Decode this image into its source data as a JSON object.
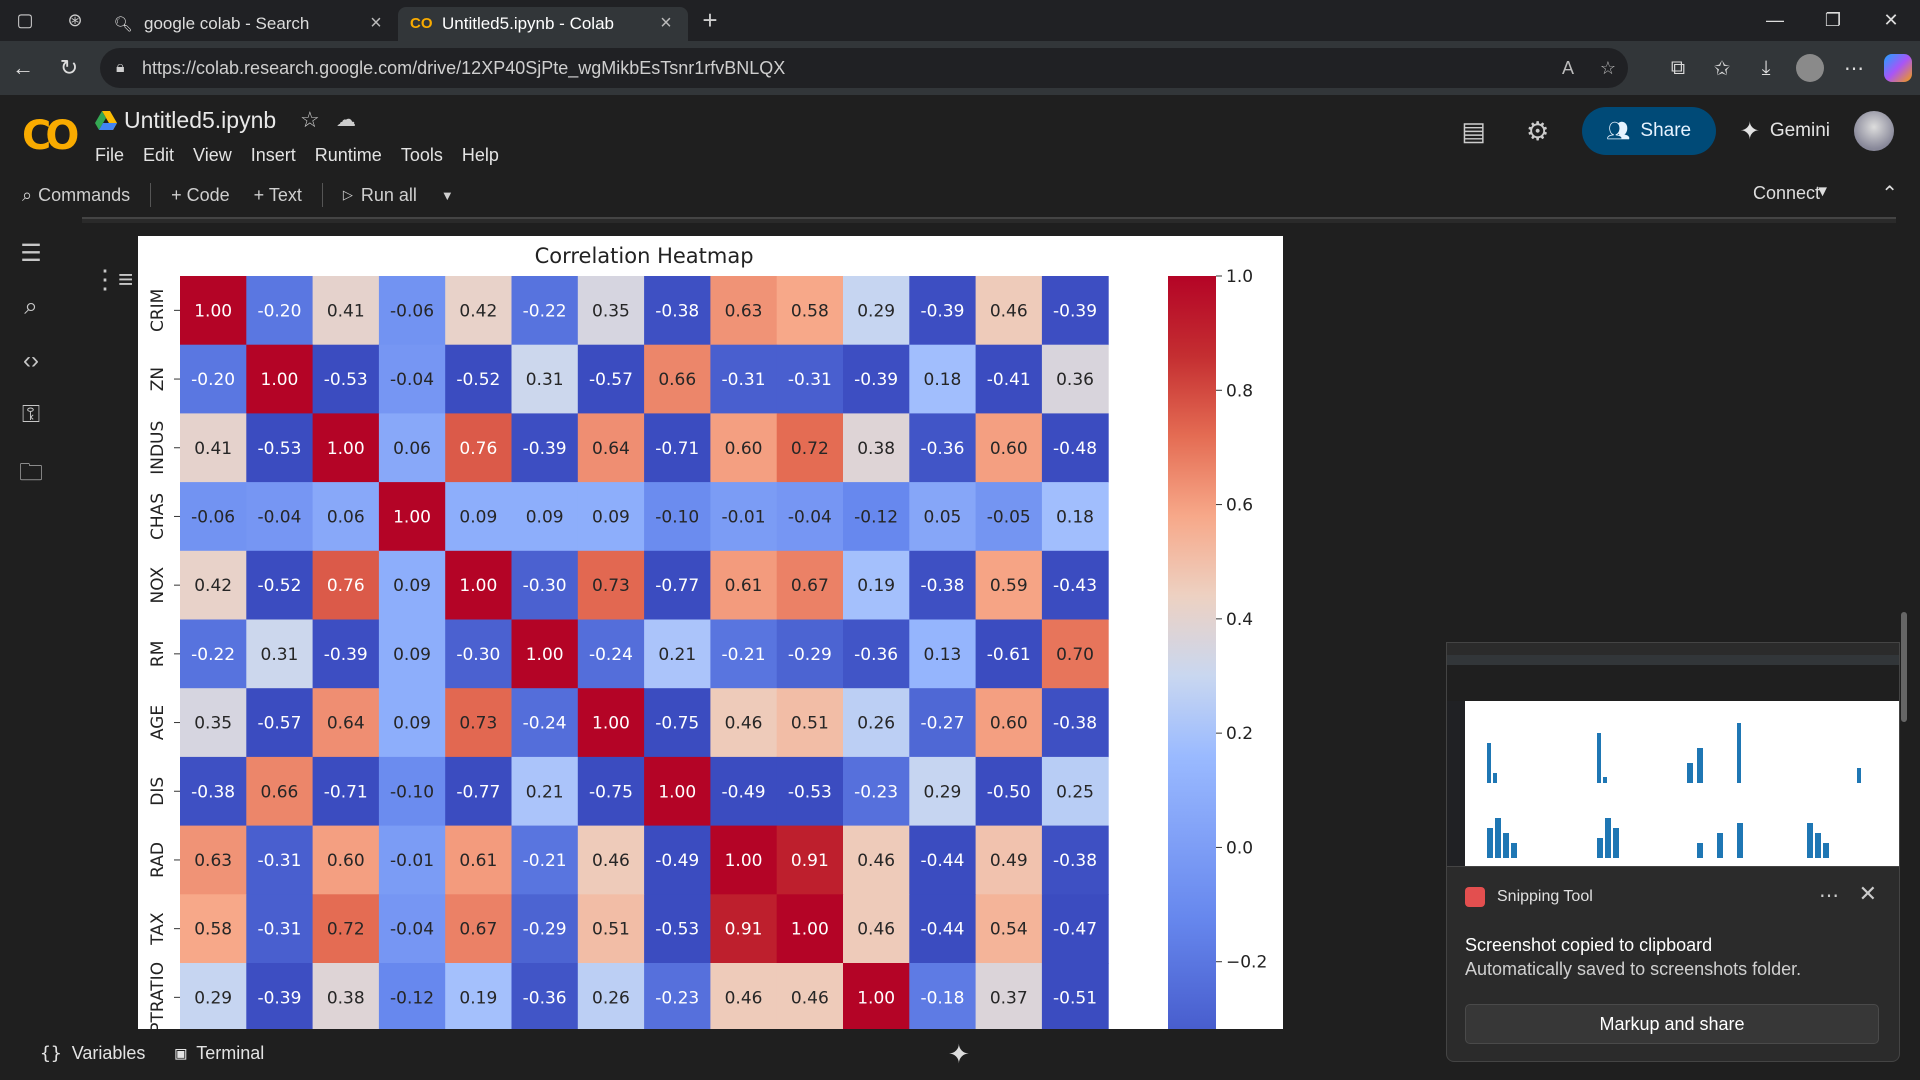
{
  "browser": {
    "tabs": [
      {
        "label": "google colab - Search",
        "icon": "search-icon"
      },
      {
        "label": "Untitled5.ipynb - Colab",
        "icon": "colab-icon",
        "active": true
      }
    ],
    "url": "https://colab.research.google.com/drive/12XP40SjPte_wgMikbEsTsnr1rfvBNLQX"
  },
  "colab": {
    "filename": "Untitled5.ipynb",
    "menus": [
      "File",
      "Edit",
      "View",
      "Insert",
      "Runtime",
      "Tools",
      "Help"
    ],
    "share_label": "Share",
    "gemini_label": "Gemini",
    "toolbar": {
      "commands": "Commands",
      "code": "+ Code",
      "text": "+ Text",
      "run_all": "Run all",
      "connect": "Connect"
    }
  },
  "bottom": {
    "variables": "Variables",
    "terminal": "Terminal"
  },
  "toast": {
    "app": "Snipping Tool",
    "title": "Screenshot copied to clipboard",
    "body": "Automatically saved to screenshots folder.",
    "button": "Markup and share"
  },
  "chart_data": {
    "type": "heatmap",
    "title": "Correlation Heatmap",
    "labels": [
      "CRIM",
      "ZN",
      "INDUS",
      "CHAS",
      "NOX",
      "RM",
      "AGE",
      "DIS",
      "RAD",
      "TAX",
      "PTRATIO"
    ],
    "matrix": [
      [
        1.0,
        -0.2,
        0.41,
        -0.06,
        0.42,
        -0.22,
        0.35,
        -0.38,
        0.63,
        0.58,
        0.29,
        -0.39,
        0.46,
        -0.39
      ],
      [
        -0.2,
        1.0,
        -0.53,
        -0.04,
        -0.52,
        0.31,
        -0.57,
        0.66,
        -0.31,
        -0.31,
        -0.39,
        0.18,
        -0.41,
        0.36
      ],
      [
        0.41,
        -0.53,
        1.0,
        0.06,
        0.76,
        -0.39,
        0.64,
        -0.71,
        0.6,
        0.72,
        0.38,
        -0.36,
        0.6,
        -0.48
      ],
      [
        -0.06,
        -0.04,
        0.06,
        1.0,
        0.09,
        0.09,
        0.09,
        -0.1,
        -0.01,
        -0.04,
        -0.12,
        0.05,
        -0.05,
        0.18
      ],
      [
        0.42,
        -0.52,
        0.76,
        0.09,
        1.0,
        -0.3,
        0.73,
        -0.77,
        0.61,
        0.67,
        0.19,
        -0.38,
        0.59,
        -0.43
      ],
      [
        -0.22,
        0.31,
        -0.39,
        0.09,
        -0.3,
        1.0,
        -0.24,
        0.21,
        -0.21,
        -0.29,
        -0.36,
        0.13,
        -0.61,
        0.7
      ],
      [
        0.35,
        -0.57,
        0.64,
        0.09,
        0.73,
        -0.24,
        1.0,
        -0.75,
        0.46,
        0.51,
        0.26,
        -0.27,
        0.6,
        -0.38
      ],
      [
        -0.38,
        0.66,
        -0.71,
        -0.1,
        -0.77,
        0.21,
        -0.75,
        1.0,
        -0.49,
        -0.53,
        -0.23,
        0.29,
        -0.5,
        0.25
      ],
      [
        0.63,
        -0.31,
        0.6,
        -0.01,
        0.61,
        -0.21,
        0.46,
        -0.49,
        1.0,
        0.91,
        0.46,
        -0.44,
        0.49,
        -0.38
      ],
      [
        0.58,
        -0.31,
        0.72,
        -0.04,
        0.67,
        -0.29,
        0.51,
        -0.53,
        0.91,
        1.0,
        0.46,
        -0.44,
        0.54,
        -0.47
      ],
      [
        0.29,
        -0.39,
        0.38,
        -0.12,
        0.19,
        -0.36,
        0.26,
        -0.23,
        0.46,
        0.46,
        1.0,
        -0.18,
        0.37,
        -0.51
      ]
    ],
    "colorbar_ticks": [
      "1.0",
      "0.8",
      "0.6",
      "0.4",
      "0.2",
      "0.0",
      "−0.2"
    ],
    "colormap": "coolwarm",
    "vmin": -0.4,
    "vmax": 1.0
  }
}
